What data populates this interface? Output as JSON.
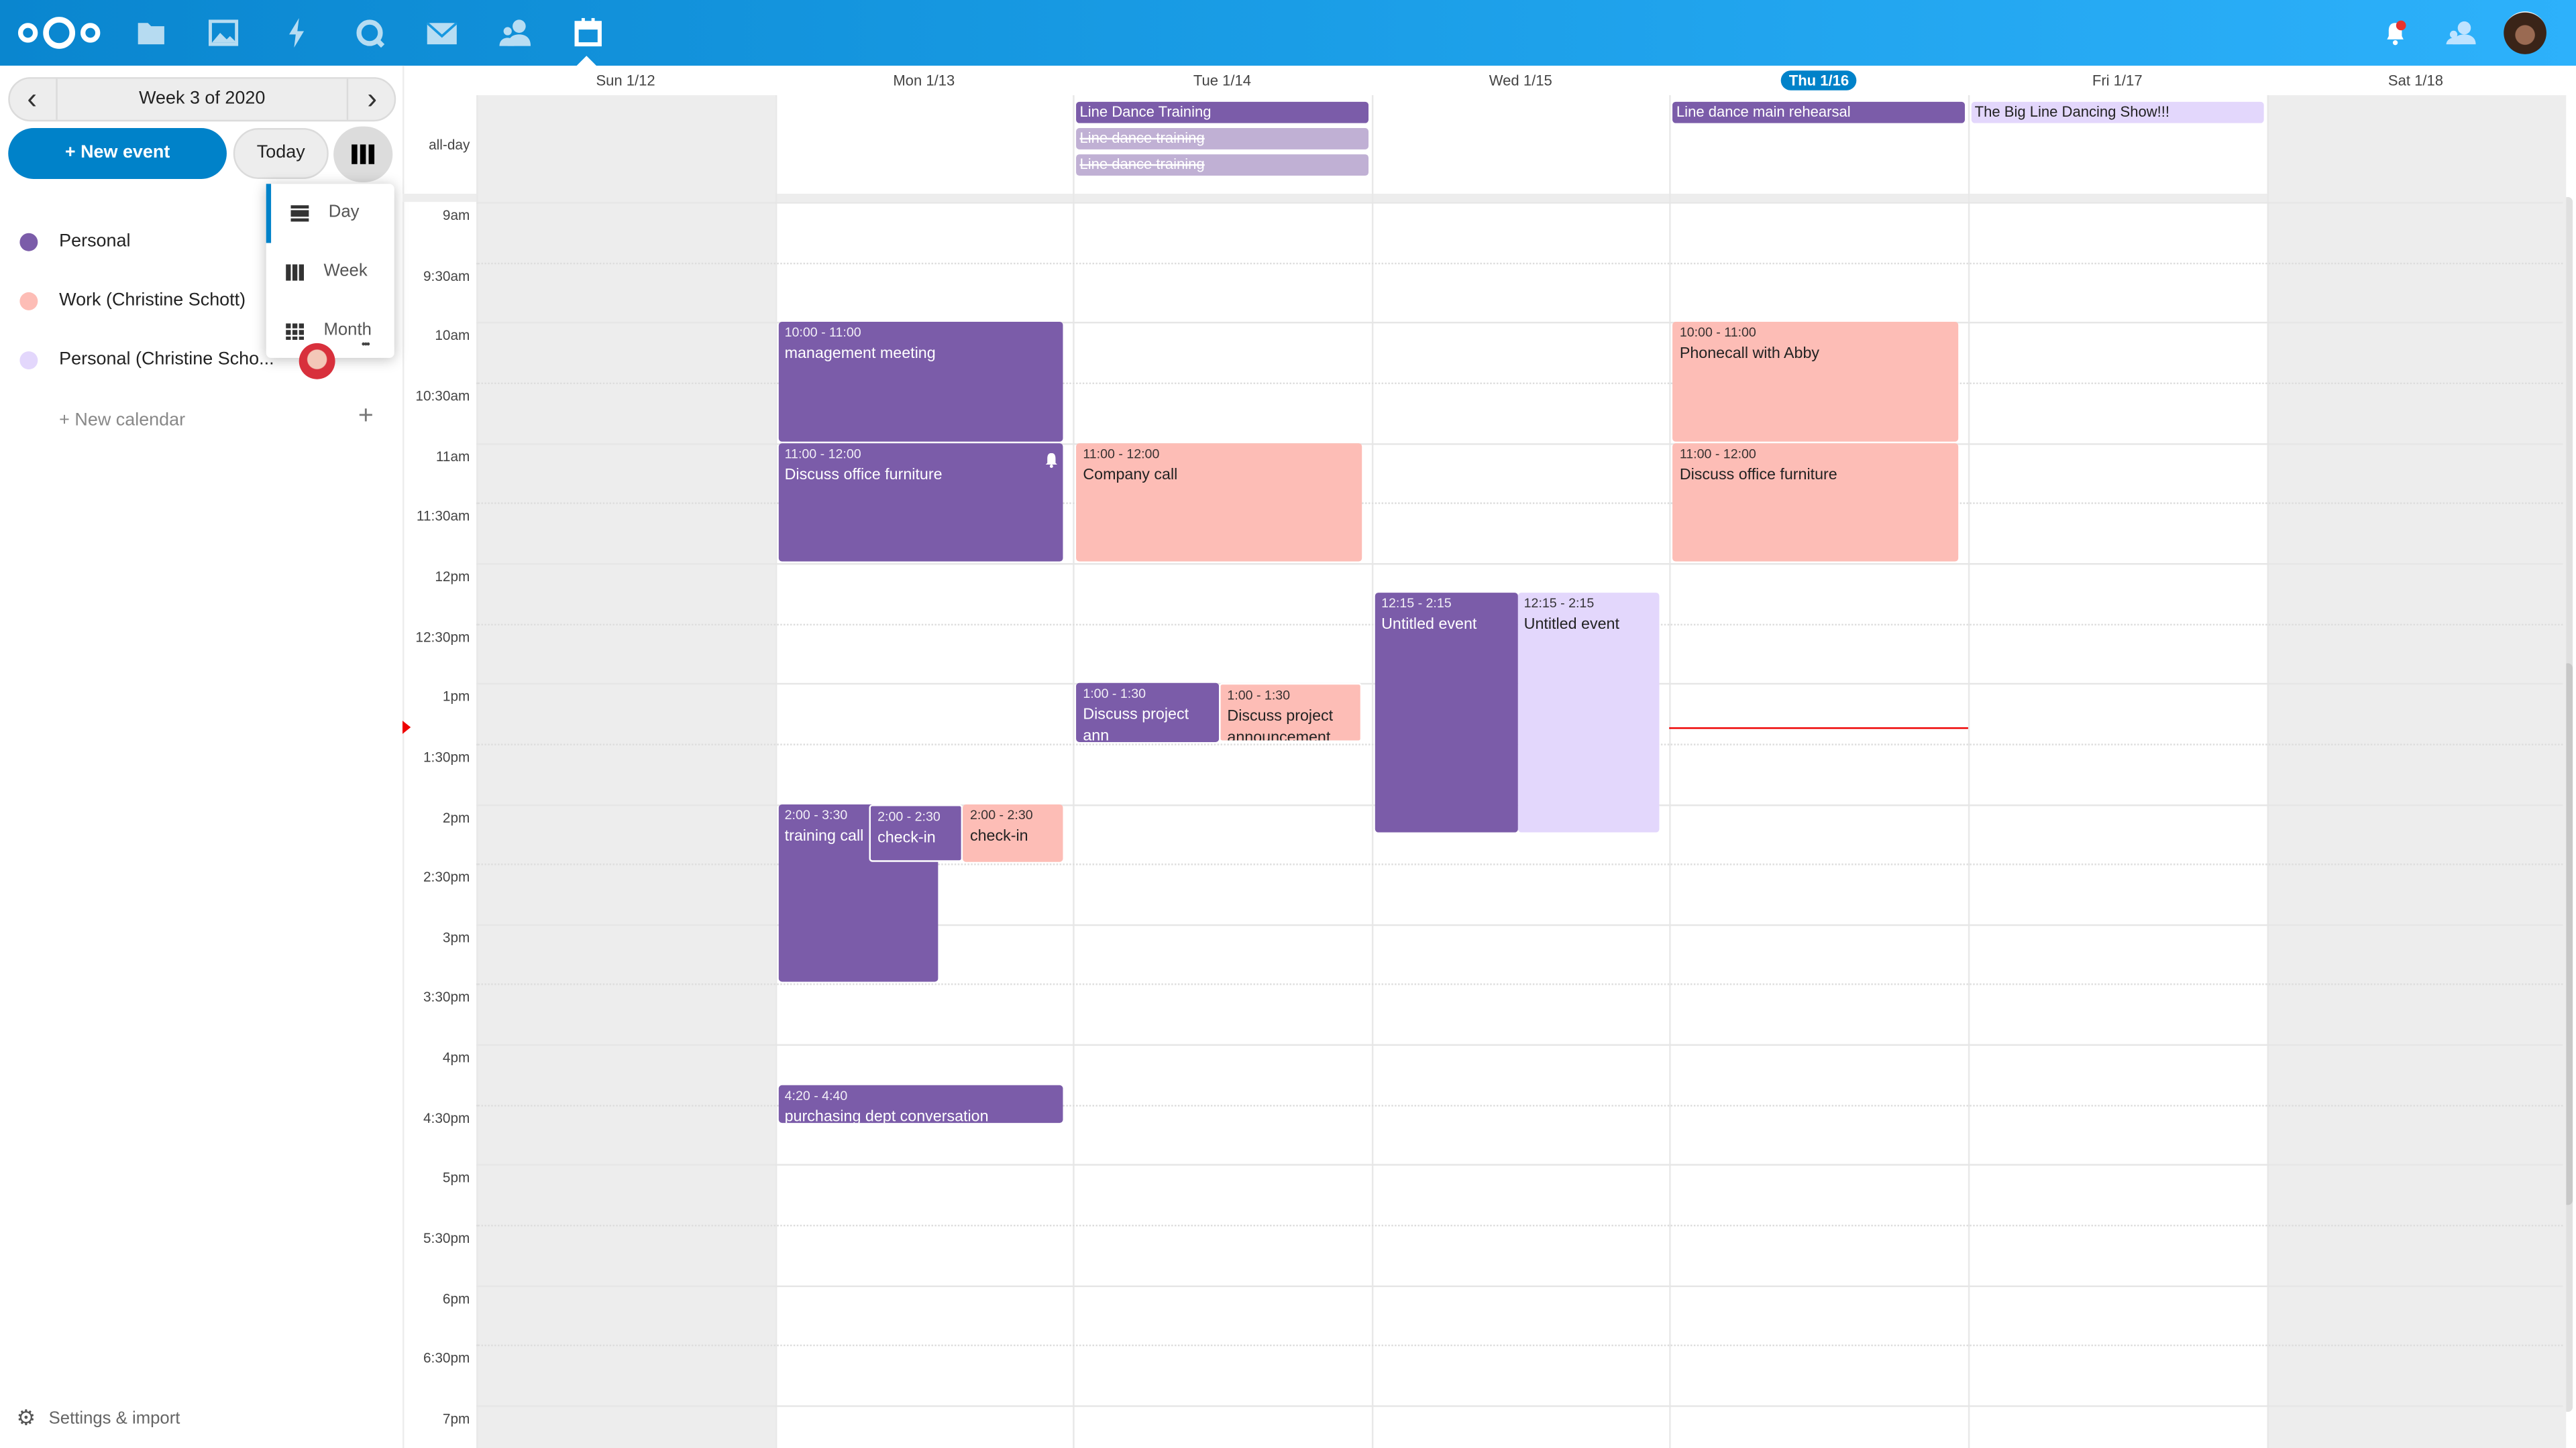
{
  "header": {
    "apps": [
      {
        "name": "files-icon"
      },
      {
        "name": "photos-icon"
      },
      {
        "name": "activity-icon"
      },
      {
        "name": "talk-icon"
      },
      {
        "name": "mail-icon"
      },
      {
        "name": "contacts-icon"
      },
      {
        "name": "calendar-icon",
        "active": true
      }
    ],
    "notification_dot_color": "#e9322d",
    "accent": "#0082c9"
  },
  "sidebar": {
    "week_label": "Week 3 of 2020",
    "new_event": "+ New event",
    "today": "Today",
    "views": [
      "Day",
      "Week",
      "Month"
    ],
    "selected_view": "Day",
    "calendars": [
      {
        "name": "Personal",
        "color": "#7b5ca9"
      },
      {
        "name": "Work (Christine Schott)",
        "color": "#fdbdb6"
      },
      {
        "name": "Personal (Christine Scho...",
        "color": "#e3d7fc",
        "shared": true
      }
    ],
    "new_calendar": "+ New calendar",
    "new_calendar_plus": "+",
    "settings": "Settings & import"
  },
  "calendar": {
    "all_day_label": "all-day",
    "days": [
      "Sun 1/12",
      "Mon 1/13",
      "Tue 1/14",
      "Wed 1/15",
      "Thu 1/16",
      "Fri 1/17",
      "Sat 1/18"
    ],
    "today_index": 4,
    "time_labels": [
      "9am",
      "9:30am",
      "10am",
      "10:30am",
      "11am",
      "11:30am",
      "12pm",
      "12:30pm",
      "1pm",
      "1:30pm",
      "2pm",
      "2:30pm",
      "3pm",
      "3:30pm",
      "4pm",
      "4:30pm",
      "5pm",
      "5:30pm",
      "6pm",
      "6:30pm",
      "7pm"
    ],
    "current_time": "13:22",
    "all_day_events": [
      {
        "day": 2,
        "title": "Line Dance Training",
        "calendar": 0
      },
      {
        "day": 2,
        "title": "Line dance training",
        "calendar": 0,
        "cancelled": true
      },
      {
        "day": 2,
        "title": "Line dance training",
        "calendar": 0,
        "cancelled": true
      },
      {
        "day": 4,
        "title": "Line dance main rehearsal",
        "calendar": 0
      },
      {
        "day": 5,
        "title": "The Big Line Dancing Show!!!",
        "calendar": 2
      }
    ],
    "events": [
      {
        "day": 1,
        "start": "10:00",
        "end": "11:00",
        "time": "10:00 - 11:00",
        "title": "management meeting",
        "calendar": 0
      },
      {
        "day": 1,
        "start": "11:00",
        "end": "12:00",
        "time": "11:00 - 12:00",
        "title": "Discuss office furniture",
        "calendar": 0,
        "reminder": true
      },
      {
        "day": 1,
        "start": "14:00",
        "end": "15:30",
        "time": "2:00 - 3:30",
        "title": "training call",
        "calendar": 0
      },
      {
        "day": 1,
        "start": "14:00",
        "end": "14:30",
        "time": "2:00 - 2:30",
        "title": "check-in",
        "calendar": 0
      },
      {
        "day": 1,
        "start": "14:00",
        "end": "14:30",
        "time": "2:00 - 2:30",
        "title": "check-in",
        "calendar": 1
      },
      {
        "day": 1,
        "start": "16:20",
        "end": "16:40",
        "time": "4:20 - 4:40",
        "title": "purchasing dept conversation",
        "calendar": 0
      },
      {
        "day": 2,
        "start": "11:00",
        "end": "12:00",
        "time": "11:00 - 12:00",
        "title": "Company call",
        "calendar": 1
      },
      {
        "day": 2,
        "start": "13:00",
        "end": "13:30",
        "time": "1:00 - 1:30",
        "title": "Discuss project ann",
        "calendar": 0
      },
      {
        "day": 2,
        "start": "13:00",
        "end": "13:30",
        "time": "1:00 - 1:30",
        "title": "Discuss project announcement",
        "calendar": 1
      },
      {
        "day": 3,
        "start": "12:15",
        "end": "14:15",
        "time": "12:15 - 2:15",
        "title": "Untitled event",
        "calendar": 0
      },
      {
        "day": 3,
        "start": "12:15",
        "end": "14:15",
        "time": "12:15 - 2:15",
        "title": "Untitled event",
        "calendar": 2
      },
      {
        "day": 4,
        "start": "10:00",
        "end": "11:00",
        "time": "10:00 - 11:00",
        "title": "Phonecall with Abby",
        "calendar": 1
      },
      {
        "day": 4,
        "start": "11:00",
        "end": "12:00",
        "time": "11:00 - 12:00",
        "title": "Discuss office furniture",
        "calendar": 1
      }
    ]
  }
}
